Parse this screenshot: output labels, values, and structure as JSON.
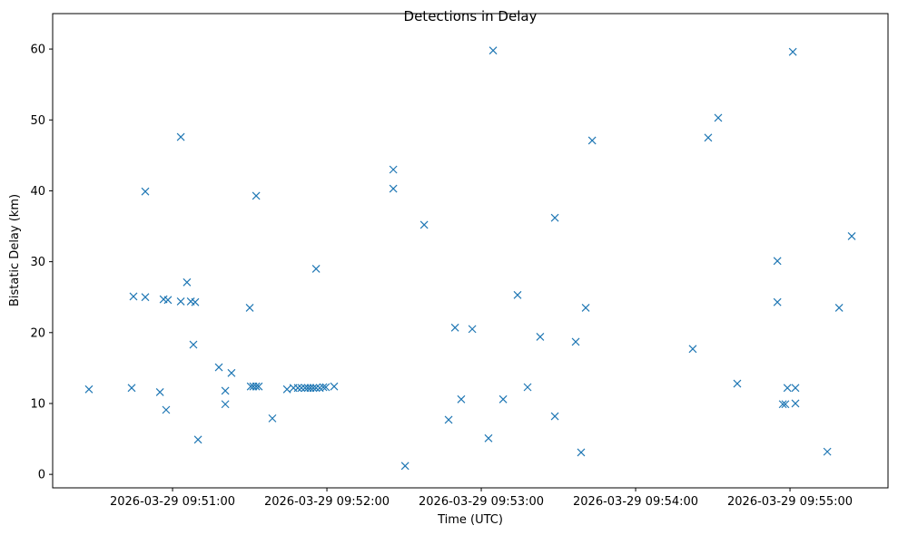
{
  "chart_data": {
    "type": "scatter",
    "title": "Detections in Delay",
    "xlabel": "Time (UTC)",
    "ylabel": "Bistatic Delay (km)",
    "x_base": "2026-03-29 09:50:00",
    "x_units": "seconds since x_base",
    "xlim": [
      13.4,
      338.1
    ],
    "ylim": [
      -1.9,
      65.0
    ],
    "grid": false,
    "marker": "x",
    "color": "#1f77b4",
    "xticks": [
      {
        "value": 60,
        "label": "2026-03-29 09:51:00"
      },
      {
        "value": 120,
        "label": "2026-03-29 09:52:00"
      },
      {
        "value": 180,
        "label": "2026-03-29 09:53:00"
      },
      {
        "value": 240,
        "label": "2026-03-29 09:54:00"
      },
      {
        "value": 300,
        "label": "2026-03-29 09:55:00"
      }
    ],
    "yticks": [
      {
        "value": 0,
        "label": "0"
      },
      {
        "value": 10,
        "label": "10"
      },
      {
        "value": 20,
        "label": "20"
      },
      {
        "value": 30,
        "label": "30"
      },
      {
        "value": 40,
        "label": "40"
      },
      {
        "value": 50,
        "label": "50"
      },
      {
        "value": 60,
        "label": "60"
      }
    ],
    "points": [
      [
        27.5,
        12.0
      ],
      [
        44.1,
        12.2
      ],
      [
        44.8,
        25.1
      ],
      [
        49.4,
        25.0
      ],
      [
        49.4,
        39.9
      ],
      [
        55.1,
        11.6
      ],
      [
        56.5,
        24.7
      ],
      [
        57.5,
        9.1
      ],
      [
        58.2,
        24.6
      ],
      [
        63.2,
        47.6
      ],
      [
        63.2,
        24.4
      ],
      [
        65.6,
        27.1
      ],
      [
        67.1,
        24.4
      ],
      [
        68.8,
        24.3
      ],
      [
        68.1,
        18.3
      ],
      [
        69.9,
        4.9
      ],
      [
        78.0,
        15.1
      ],
      [
        80.5,
        11.8
      ],
      [
        80.5,
        9.9
      ],
      [
        82.9,
        14.3
      ],
      [
        90.0,
        23.5
      ],
      [
        90.4,
        12.4
      ],
      [
        91.4,
        12.4
      ],
      [
        92.5,
        12.4
      ],
      [
        93.5,
        12.4
      ],
      [
        92.5,
        39.3
      ],
      [
        98.8,
        7.9
      ],
      [
        104.5,
        12.0
      ],
      [
        107.0,
        12.2
      ],
      [
        108.7,
        12.2
      ],
      [
        110.1,
        12.2
      ],
      [
        111.5,
        12.2
      ],
      [
        112.6,
        12.2
      ],
      [
        113.6,
        12.2
      ],
      [
        114.7,
        12.2
      ],
      [
        115.8,
        12.2
      ],
      [
        117.2,
        12.2
      ],
      [
        118.6,
        12.3
      ],
      [
        119.6,
        12.3
      ],
      [
        115.8,
        29.0
      ],
      [
        122.8,
        12.4
      ],
      [
        145.8,
        43.0
      ],
      [
        145.8,
        40.3
      ],
      [
        150.4,
        1.2
      ],
      [
        157.8,
        35.2
      ],
      [
        167.3,
        7.7
      ],
      [
        169.8,
        20.7
      ],
      [
        172.2,
        10.6
      ],
      [
        176.5,
        20.5
      ],
      [
        182.8,
        5.1
      ],
      [
        184.6,
        59.8
      ],
      [
        188.5,
        10.6
      ],
      [
        194.1,
        25.3
      ],
      [
        198.0,
        12.3
      ],
      [
        202.9,
        19.4
      ],
      [
        208.6,
        36.2
      ],
      [
        208.6,
        8.2
      ],
      [
        216.7,
        18.7
      ],
      [
        218.8,
        3.1
      ],
      [
        220.6,
        23.5
      ],
      [
        223.1,
        47.1
      ],
      [
        262.2,
        17.7
      ],
      [
        268.2,
        47.5
      ],
      [
        272.1,
        50.3
      ],
      [
        279.5,
        12.8
      ],
      [
        295.1,
        30.1
      ],
      [
        295.1,
        24.3
      ],
      [
        297.2,
        9.9
      ],
      [
        298.2,
        9.9
      ],
      [
        299.0,
        12.2
      ],
      [
        301.1,
        59.6
      ],
      [
        302.1,
        12.2
      ],
      [
        302.1,
        10.0
      ],
      [
        314.5,
        3.2
      ],
      [
        319.1,
        23.5
      ],
      [
        324.0,
        33.6
      ]
    ]
  }
}
